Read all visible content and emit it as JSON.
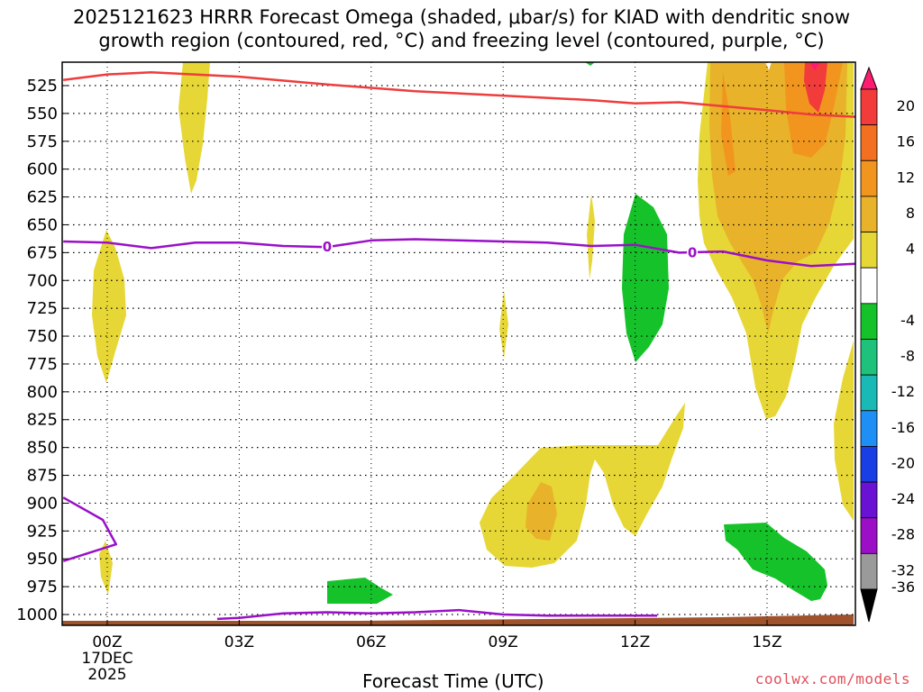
{
  "title_line1": "2025121623 HRRR Forecast Omega (shaded, μbar/s) for KIAD with dendritic snow",
  "title_line2": "growth region (contoured, red, °C) and freezing level (contoured, purple, °C)",
  "credit": "coolwx.com/models",
  "chart_data": {
    "type": "time-height",
    "xlabel": "Forecast Time (UTC)",
    "x_ticks": [
      {
        "hour": 0,
        "label": "00Z",
        "sub1": "17DEC",
        "sub2": "2025"
      },
      {
        "hour": 3,
        "label": "03Z"
      },
      {
        "hour": 6,
        "label": "06Z"
      },
      {
        "hour": 9,
        "label": "09Z"
      },
      {
        "hour": 12,
        "label": "12Z"
      },
      {
        "hour": 15,
        "label": "15Z"
      }
    ],
    "x_range": [
      -1,
      17
    ],
    "y_levels": [
      525,
      550,
      575,
      600,
      625,
      650,
      675,
      700,
      725,
      750,
      775,
      800,
      825,
      850,
      875,
      900,
      925,
      950,
      975,
      1000
    ],
    "y_range": [
      505,
      1005
    ],
    "colorbar": {
      "labels": [
        "20",
        "16",
        "12",
        "8",
        "4",
        "-4",
        "-8",
        "-12",
        "-16",
        "-20",
        "-24",
        "-28",
        "-32",
        "-36"
      ],
      "colors": [
        "#ff1b6f",
        "#f23b3b",
        "#f37020",
        "#f2951e",
        "#e8b22a",
        "#e6d736",
        "#ffffff",
        "#16c22a",
        "#1ec27a",
        "#19b9b6",
        "#1e8ff5",
        "#1a3ee6",
        "#6a12d4",
        "#9b10c6",
        "#9a9a9a",
        "#000000"
      ]
    },
    "freezing_level_label": "0",
    "freezing_level_hPa": [
      [
        -1,
        665
      ],
      [
        0,
        666
      ],
      [
        1,
        671
      ],
      [
        2,
        666
      ],
      [
        3,
        666
      ],
      [
        4,
        669
      ],
      [
        5,
        670
      ],
      [
        6,
        664
      ],
      [
        7,
        663
      ],
      [
        8,
        664
      ],
      [
        9,
        665
      ],
      [
        10,
        666
      ],
      [
        11,
        669
      ],
      [
        12,
        668
      ],
      [
        13,
        675
      ],
      [
        14,
        674
      ],
      [
        15,
        682
      ],
      [
        16,
        687
      ],
      [
        17,
        685
      ]
    ],
    "dgz_top_hPa": [
      [
        -1,
        520
      ],
      [
        0,
        515
      ],
      [
        1,
        513
      ],
      [
        3,
        517
      ],
      [
        5,
        524
      ],
      [
        7,
        530
      ],
      [
        9,
        534
      ],
      [
        11,
        538
      ],
      [
        12,
        541
      ],
      [
        13,
        540
      ],
      [
        15,
        547
      ],
      [
        16,
        551
      ],
      [
        17,
        553
      ]
    ],
    "surface_freezing_hPa": [
      [
        2.5,
        1004
      ],
      [
        3,
        1003
      ],
      [
        4,
        999
      ],
      [
        5,
        998
      ],
      [
        6,
        999
      ],
      [
        7,
        998
      ],
      [
        8,
        996
      ],
      [
        9,
        1000
      ],
      [
        10,
        1001
      ],
      [
        11,
        1001
      ],
      [
        12,
        1001
      ],
      [
        12.5,
        1001
      ]
    ],
    "lower_freezing_hPa": [
      [
        -1,
        895
      ],
      [
        -0.1,
        915
      ],
      [
        0.2,
        937
      ],
      [
        -1,
        952
      ]
    ]
  }
}
